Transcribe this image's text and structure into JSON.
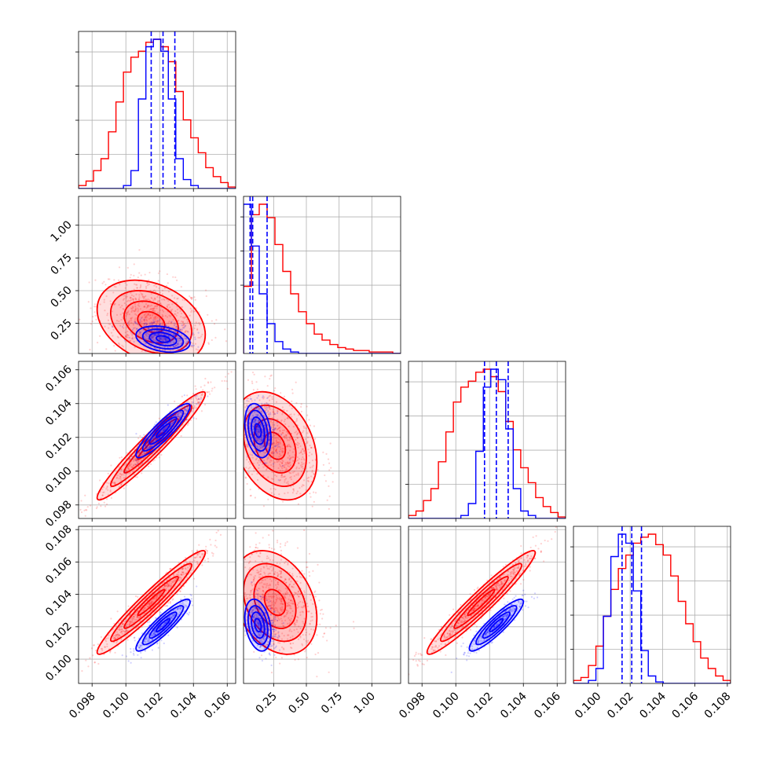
{
  "chart_data": {
    "type": "corner",
    "title": "",
    "parameters": [
      {
        "index": 0,
        "range": [
          0.0972,
          0.1065
        ],
        "ticks": [
          "0.098",
          "0.100",
          "0.102",
          "0.104",
          "0.106"
        ],
        "tick_values": [
          0.098,
          0.1,
          0.102,
          0.104,
          0.106
        ]
      },
      {
        "index": 1,
        "range": [
          0.02,
          1.22
        ],
        "ticks": [
          "0.25",
          "0.50",
          "0.75",
          "1.00"
        ],
        "tick_values": [
          0.25,
          0.5,
          0.75,
          1.0
        ]
      },
      {
        "index": 2,
        "range": [
          0.0972,
          0.1065
        ],
        "ticks": [
          "0.098",
          "0.100",
          "0.102",
          "0.104",
          "0.106"
        ],
        "tick_values": [
          0.098,
          0.1,
          0.102,
          0.104,
          0.106
        ]
      },
      {
        "index": 3,
        "range": [
          0.0985,
          0.1082
        ],
        "ticks": [
          "0.100",
          "0.102",
          "0.104",
          "0.106",
          "0.108"
        ],
        "tick_values": [
          0.1,
          0.102,
          0.104,
          0.106,
          0.108
        ]
      }
    ],
    "series": [
      {
        "color": "#ff0000",
        "histograms": [
          {
            "edges": [
              0.0972,
              0.1065
            ],
            "counts": [
              0.02,
              0.05,
              0.12,
              0.2,
              0.38,
              0.58,
              0.78,
              0.88,
              0.92,
              0.98,
              1.0,
              0.95,
              0.85,
              0.65,
              0.46,
              0.34,
              0.24,
              0.14,
              0.08,
              0.04,
              0.01
            ]
          },
          {
            "edges": [
              0.02,
              1.22
            ],
            "counts": [
              0.45,
              0.93,
              1.0,
              0.91,
              0.73,
              0.55,
              0.4,
              0.28,
              0.2,
              0.13,
              0.09,
              0.06,
              0.04,
              0.03,
              0.02,
              0.02,
              0.01,
              0.01,
              0.01,
              0.0
            ]
          },
          {
            "edges": [
              0.0972,
              0.1065
            ],
            "counts": [
              0.02,
              0.05,
              0.12,
              0.2,
              0.38,
              0.58,
              0.78,
              0.88,
              0.92,
              0.98,
              1.0,
              0.95,
              0.85,
              0.65,
              0.46,
              0.34,
              0.24,
              0.14,
              0.08,
              0.04,
              0.01
            ]
          },
          {
            "edges": [
              0.0985,
              0.1082
            ],
            "counts": [
              0.02,
              0.04,
              0.12,
              0.25,
              0.45,
              0.63,
              0.77,
              0.86,
              0.94,
              0.98,
              1.0,
              0.93,
              0.86,
              0.72,
              0.55,
              0.4,
              0.28,
              0.17,
              0.1,
              0.05,
              0.02
            ]
          }
        ],
        "points": [
          {
            "x": 0,
            "y": 1,
            "mean": [
              0.1015,
              0.26
            ],
            "sd": [
              0.0016,
              0.16
            ],
            "rho": -0.3
          },
          {
            "x": 0,
            "y": 2,
            "mean": [
              0.1015,
              0.1015
            ],
            "sd": [
              0.0016,
              0.0016
            ],
            "rho": 0.96
          },
          {
            "x": 1,
            "y": 2,
            "mean": [
              0.26,
              0.1015
            ],
            "sd": [
              0.16,
              0.0016
            ],
            "rho": -0.3
          },
          {
            "x": 0,
            "y": 3,
            "mean": [
              0.1015,
              0.1035
            ],
            "sd": [
              0.0016,
              0.0016
            ],
            "rho": 0.96
          },
          {
            "x": 1,
            "y": 3,
            "mean": [
              0.26,
              0.1035
            ],
            "sd": [
              0.16,
              0.0016
            ],
            "rho": -0.3
          },
          {
            "x": 2,
            "y": 3,
            "mean": [
              0.1015,
              0.1035
            ],
            "sd": [
              0.0016,
              0.0016
            ],
            "rho": 0.96
          }
        ],
        "quantiles": []
      },
      {
        "color": "#0000ff",
        "histograms": [
          {
            "edges": [
              0.0972,
              0.1065
            ],
            "counts": [
              0.0,
              0.0,
              0.0,
              0.0,
              0.0,
              0.0,
              0.02,
              0.12,
              0.6,
              0.95,
              1.0,
              0.92,
              0.6,
              0.2,
              0.06,
              0.02,
              0.0,
              0.0,
              0.0,
              0.0,
              0.0
            ]
          },
          {
            "edges": [
              0.02,
              1.22
            ],
            "counts": [
              1.0,
              0.72,
              0.4,
              0.2,
              0.08,
              0.03,
              0.01,
              0.0,
              0.0,
              0.0,
              0.0,
              0.0,
              0.0,
              0.0,
              0.0,
              0.0,
              0.0,
              0.0,
              0.0,
              0.0
            ]
          },
          {
            "edges": [
              0.0972,
              0.1065
            ],
            "counts": [
              0.0,
              0.0,
              0.0,
              0.0,
              0.0,
              0.0,
              0.0,
              0.02,
              0.1,
              0.45,
              0.88,
              1.0,
              0.93,
              0.6,
              0.2,
              0.05,
              0.02,
              0.0,
              0.0,
              0.0,
              0.0
            ]
          },
          {
            "edges": [
              0.0985,
              0.1082
            ],
            "counts": [
              0.0,
              0.0,
              0.02,
              0.1,
              0.45,
              0.85,
              1.0,
              0.94,
              0.62,
              0.22,
              0.05,
              0.01,
              0.0,
              0.0,
              0.0,
              0.0,
              0.0,
              0.0,
              0.0,
              0.0,
              0.0
            ]
          }
        ],
        "points": [
          {
            "x": 0,
            "y": 1,
            "mean": [
              0.1022,
              0.13
            ],
            "sd": [
              0.0008,
              0.05
            ],
            "rho": -0.3
          },
          {
            "x": 0,
            "y": 2,
            "mean": [
              0.1022,
              0.1024
            ],
            "sd": [
              0.0008,
              0.0008
            ],
            "rho": 0.9
          },
          {
            "x": 1,
            "y": 2,
            "mean": [
              0.13,
              0.1024
            ],
            "sd": [
              0.05,
              0.0008
            ],
            "rho": -0.3
          },
          {
            "x": 0,
            "y": 3,
            "mean": [
              0.1022,
              0.1021
            ],
            "sd": [
              0.0008,
              0.0008
            ],
            "rho": 0.9
          },
          {
            "x": 1,
            "y": 3,
            "mean": [
              0.13,
              0.1021
            ],
            "sd": [
              0.05,
              0.0008
            ],
            "rho": -0.3
          },
          {
            "x": 2,
            "y": 3,
            "mean": [
              0.1024,
              0.1021
            ],
            "sd": [
              0.0008,
              0.0008
            ],
            "rho": 0.9
          }
        ],
        "quantiles": [
          [
            0.1015,
            0.1022,
            0.1029
          ],
          [
            0.07,
            0.09,
            0.2
          ],
          [
            0.1017,
            0.1024,
            0.1031
          ],
          [
            0.1015,
            0.1021,
            0.1027
          ]
        ]
      }
    ],
    "grid": true
  }
}
